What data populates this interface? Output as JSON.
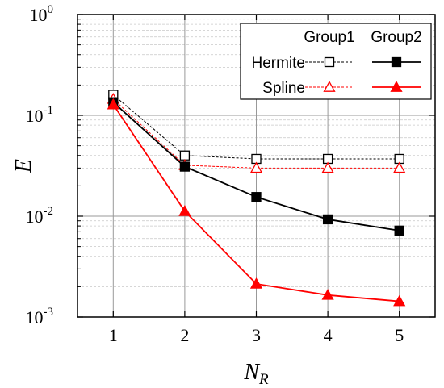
{
  "chart_data": {
    "type": "line",
    "x": [
      1,
      2,
      3,
      4,
      5
    ],
    "xticks": [
      "1",
      "2",
      "3",
      "4",
      "5"
    ],
    "xlim": [
      0.5,
      5.5
    ],
    "xlabel_main": "N",
    "xlabel_sub": "R",
    "ylabel": "E",
    "yscale": "log",
    "ylim": [
      0.001,
      1
    ],
    "yticks": [
      {
        "base": "10",
        "exp": "-3"
      },
      {
        "base": "10",
        "exp": "-2"
      },
      {
        "base": "10",
        "exp": "-1"
      },
      {
        "base": "10",
        "exp": "0"
      }
    ],
    "grid": true,
    "legend": {
      "placement": "top-right",
      "col_headers": [
        "Group1",
        "Group2"
      ],
      "row_labels": [
        "Hermite",
        "Spline"
      ]
    },
    "series": [
      {
        "method": "Hermite",
        "group": "Group1",
        "color": "#000000",
        "marker": "open-square",
        "dashed": true,
        "values": [
          0.16,
          0.04,
          0.037,
          0.037,
          0.037
        ]
      },
      {
        "method": "Spline",
        "group": "Group1",
        "color": "#ff0000",
        "marker": "open-triangle",
        "dashed": true,
        "values": [
          0.145,
          0.032,
          0.03,
          0.03,
          0.03
        ]
      },
      {
        "method": "Hermite",
        "group": "Group2",
        "color": "#000000",
        "marker": "filled-square",
        "dashed": false,
        "values": [
          0.135,
          0.031,
          0.0155,
          0.0093,
          0.0072
        ]
      },
      {
        "method": "Spline",
        "group": "Group2",
        "color": "#ff0000",
        "marker": "filled-triangle",
        "dashed": false,
        "values": [
          0.128,
          0.0112,
          0.00213,
          0.00165,
          0.00143
        ]
      }
    ]
  }
}
